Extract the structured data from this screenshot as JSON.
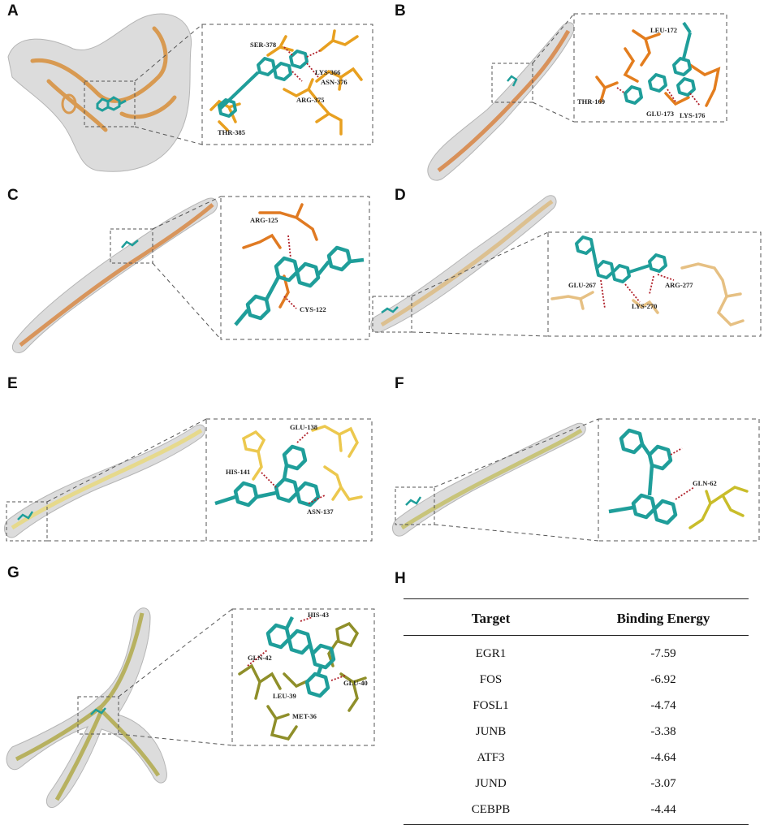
{
  "panels": [
    {
      "letter": "A",
      "residues": [
        "SER-378",
        "LYS-366",
        "ASN-376",
        "ARG-375",
        "THR-385"
      ],
      "protein_color": "#d89a52",
      "residue_color": "#e8a020"
    },
    {
      "letter": "B",
      "residues": [
        "LEU-172",
        "THR-169",
        "GLU-173",
        "LYS-176"
      ],
      "protein_color": "#d8915a",
      "residue_color": "#e37d1e"
    },
    {
      "letter": "C",
      "residues": [
        "ARG-125",
        "CYS-122"
      ],
      "protein_color": "#d8955c",
      "residue_color": "#e07a22"
    },
    {
      "letter": "D",
      "residues": [
        "GLU-267",
        "ARG-277",
        "LYS-270"
      ],
      "protein_color": "#dcc090",
      "residue_color": "#e6c083"
    },
    {
      "letter": "E",
      "residues": [
        "GLU-138",
        "HIS-141",
        "ASN-137"
      ],
      "protein_color": "#e6d98c",
      "residue_color": "#ecc84e"
    },
    {
      "letter": "F",
      "residues": [
        "GLN-62"
      ],
      "protein_color": "#c8c47a",
      "residue_color": "#c9bd2a"
    },
    {
      "letter": "G",
      "residues": [
        "HIS-43",
        "GLN-42",
        "GLU-40",
        "LEU-39",
        "MET-36"
      ],
      "protein_color": "#b7b160",
      "residue_color": "#8f8f2a"
    }
  ],
  "ligand_color": "#1f9e9a",
  "hbond_color": "#b0202a",
  "surface_color": "#c9c9c9",
  "table": {
    "letter": "H",
    "header": {
      "target": "Target",
      "energy": "Binding Energy"
    },
    "rows": [
      {
        "target": "EGR1",
        "energy": "-7.59"
      },
      {
        "target": "FOS",
        "energy": "-6.92"
      },
      {
        "target": "FOSL1",
        "energy": "-4.74"
      },
      {
        "target": "JUNB",
        "energy": "-3.38"
      },
      {
        "target": "ATF3",
        "energy": "-4.64"
      },
      {
        "target": "JUND",
        "energy": "-3.07"
      },
      {
        "target": "CEBPB",
        "energy": "-4.44"
      }
    ]
  }
}
